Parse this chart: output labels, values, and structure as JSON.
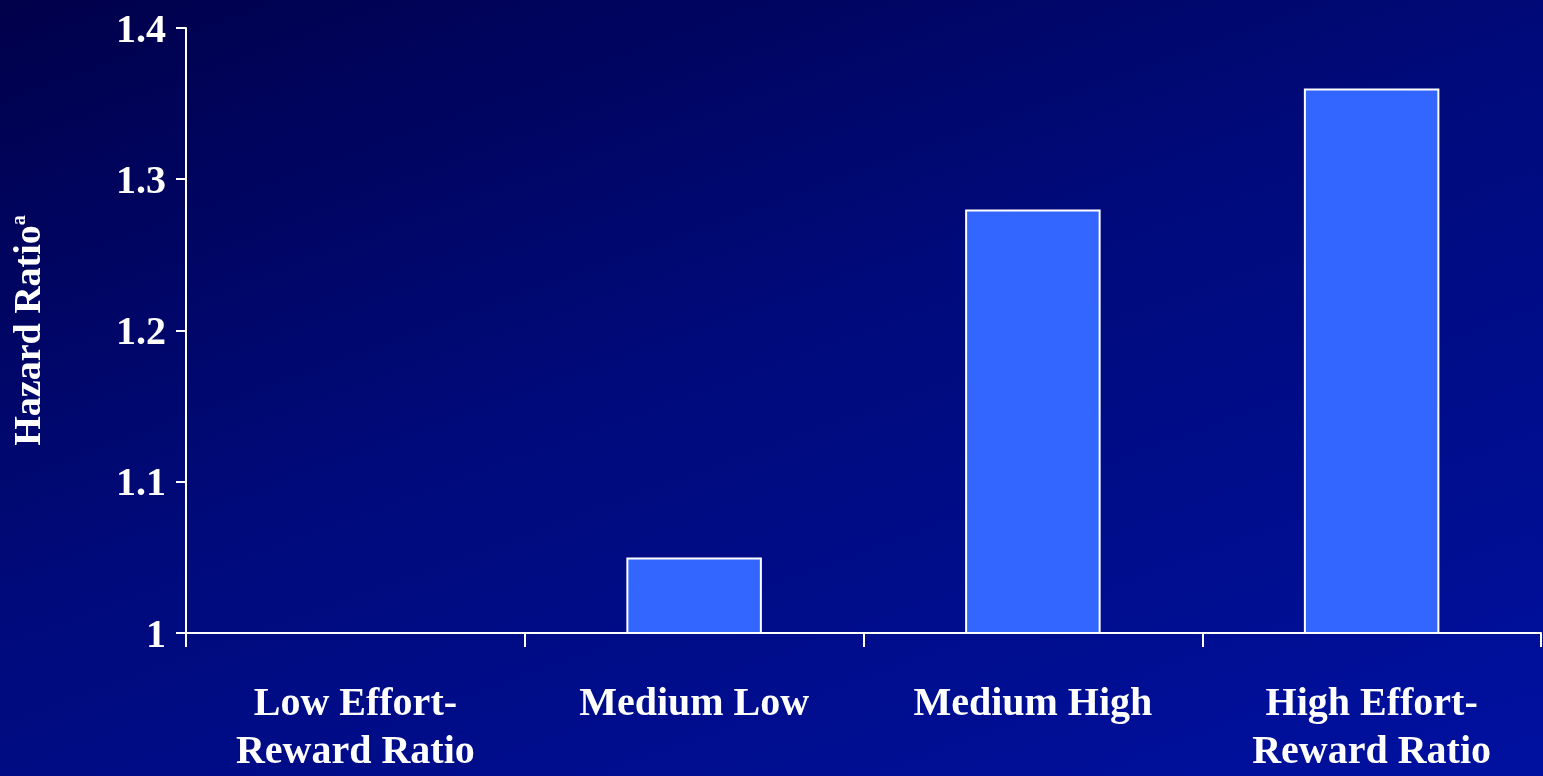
{
  "chart_data": {
    "type": "bar",
    "ylabel": "Hazard Ratio$^{a}$",
    "categories": [
      "Low Effort-\nReward Ratio",
      "Medium Low",
      "Medium High",
      "High Effort-\nReward Ratio"
    ],
    "values": [
      1,
      1.05,
      1.28,
      1.36
    ],
    "color": "#3366ff",
    "ylim": [
      1,
      1.4
    ],
    "yticks": [
      1,
      1.1,
      1.2,
      1.3,
      1.4
    ],
    "grid": false
  }
}
